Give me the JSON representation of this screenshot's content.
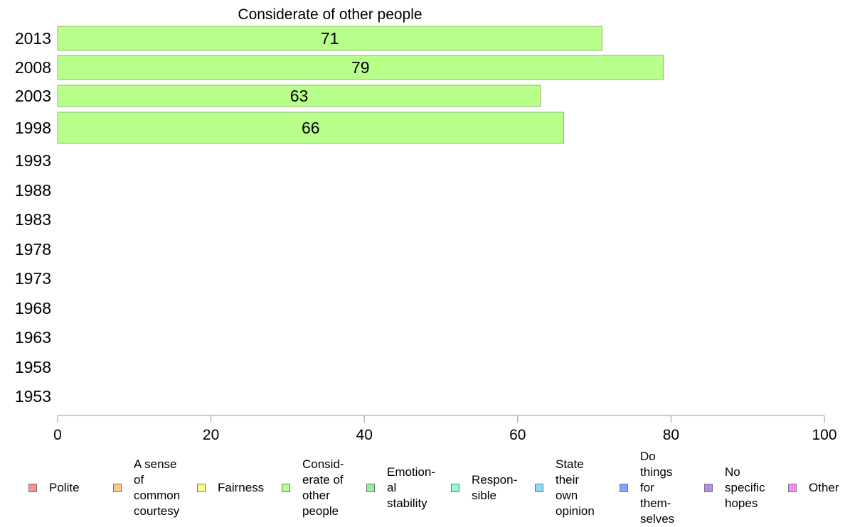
{
  "chart_data": {
    "type": "bar",
    "orientation": "horizontal",
    "title": "Considerate of other people",
    "categories": [
      "2013",
      "2008",
      "2003",
      "1998",
      "1993",
      "1988",
      "1983",
      "1978",
      "1973",
      "1968",
      "1963",
      "1958",
      "1953"
    ],
    "series": [
      {
        "name": "Considerate of other people",
        "values": [
          71,
          79,
          63,
          66,
          null,
          null,
          null,
          null,
          null,
          null,
          null,
          null,
          null
        ]
      }
    ],
    "data_labels": [
      "71",
      "79",
      "63",
      "66",
      "",
      "",
      "",
      "",
      "",
      "",
      "",
      "",
      ""
    ],
    "xlim": [
      0,
      100
    ],
    "xticks": [
      "0",
      "20",
      "40",
      "60",
      "80",
      "100"
    ],
    "xlabel": "",
    "ylabel": "",
    "grid": false,
    "legend_position": "bottom",
    "bar_color": "#b9ff8c"
  },
  "legend": {
    "items": [
      {
        "label": "Polite",
        "color": "#f99090"
      },
      {
        "label": "A sense\nof\ncommon\ncourtesy",
        "color": "#f9c78c"
      },
      {
        "label": "Fairness",
        "color": "#fcfc8c"
      },
      {
        "label": "Consid-\nerate of\nother\npeople",
        "color": "#b9ff8c"
      },
      {
        "label": "Emotion-\nal\nstability",
        "color": "#8cf29e"
      },
      {
        "label": "Respon-\nsible",
        "color": "#8cf9dc"
      },
      {
        "label": "State\ntheir\nown\nopinion",
        "color": "#8cdcf9"
      },
      {
        "label": "Do\nthings\nfor\nthem-\nselves",
        "color": "#8ca0f9"
      },
      {
        "label": "No\nspecific\nhopes",
        "color": "#b38cf9"
      },
      {
        "label": "Other",
        "color": "#f98cf2"
      }
    ]
  }
}
